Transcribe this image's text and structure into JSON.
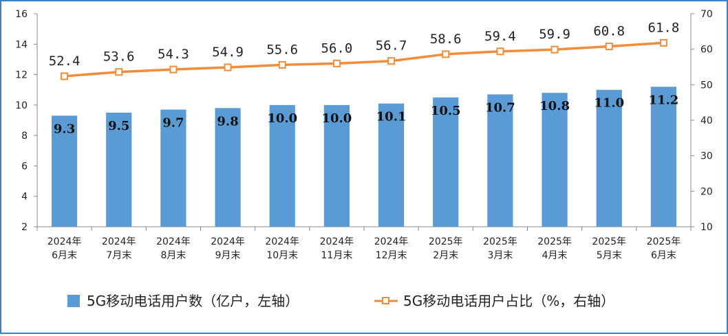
{
  "chart_data": {
    "type": "bar",
    "categories": [
      [
        "2024年",
        "6月末"
      ],
      [
        "2024年",
        "7月末"
      ],
      [
        "2024年",
        "8月末"
      ],
      [
        "2024年",
        "9月末"
      ],
      [
        "2024年",
        "10月末"
      ],
      [
        "2024年",
        "11月末"
      ],
      [
        "2024年",
        "12月末"
      ],
      [
        "2025年",
        "2月末"
      ],
      [
        "2025年",
        "3月末"
      ],
      [
        "2025年",
        "4月末"
      ],
      [
        "2025年",
        "5月末"
      ],
      [
        "2025年",
        "6月末"
      ]
    ],
    "series": [
      {
        "name": "5G移动电话用户数（亿户，左轴）",
        "type": "bar",
        "axis": "left",
        "color": "#5b9bd5",
        "values": [
          9.3,
          9.5,
          9.7,
          9.8,
          10.0,
          10.0,
          10.1,
          10.5,
          10.7,
          10.8,
          11.0,
          11.2
        ],
        "labels": [
          "9.3",
          "9.5",
          "9.7",
          "9.8",
          "10.0",
          "10.0",
          "10.1",
          "10.5",
          "10.7",
          "10.8",
          "11.0",
          "11.2"
        ]
      },
      {
        "name": "5G移动电话用户占比（%，右轴）",
        "type": "line",
        "axis": "right",
        "color": "#f28c38",
        "values": [
          52.4,
          53.6,
          54.3,
          54.9,
          55.6,
          56.0,
          56.7,
          58.6,
          59.4,
          59.9,
          60.8,
          61.8
        ],
        "labels": [
          "52.4",
          "53.6",
          "54.3",
          "54.9",
          "55.6",
          "56.0",
          "56.7",
          "58.6",
          "59.4",
          "59.9",
          "60.8",
          "61.8"
        ]
      }
    ],
    "y_left": {
      "ylim": [
        2,
        16
      ],
      "ticks": [
        "2",
        "4",
        "6",
        "8",
        "10",
        "12",
        "14",
        "16"
      ]
    },
    "y_right": {
      "ylim": [
        10,
        70
      ],
      "ticks": [
        "10",
        "20",
        "30",
        "40",
        "50",
        "60",
        "70"
      ]
    },
    "grid": false,
    "legend_position": "bottom"
  }
}
